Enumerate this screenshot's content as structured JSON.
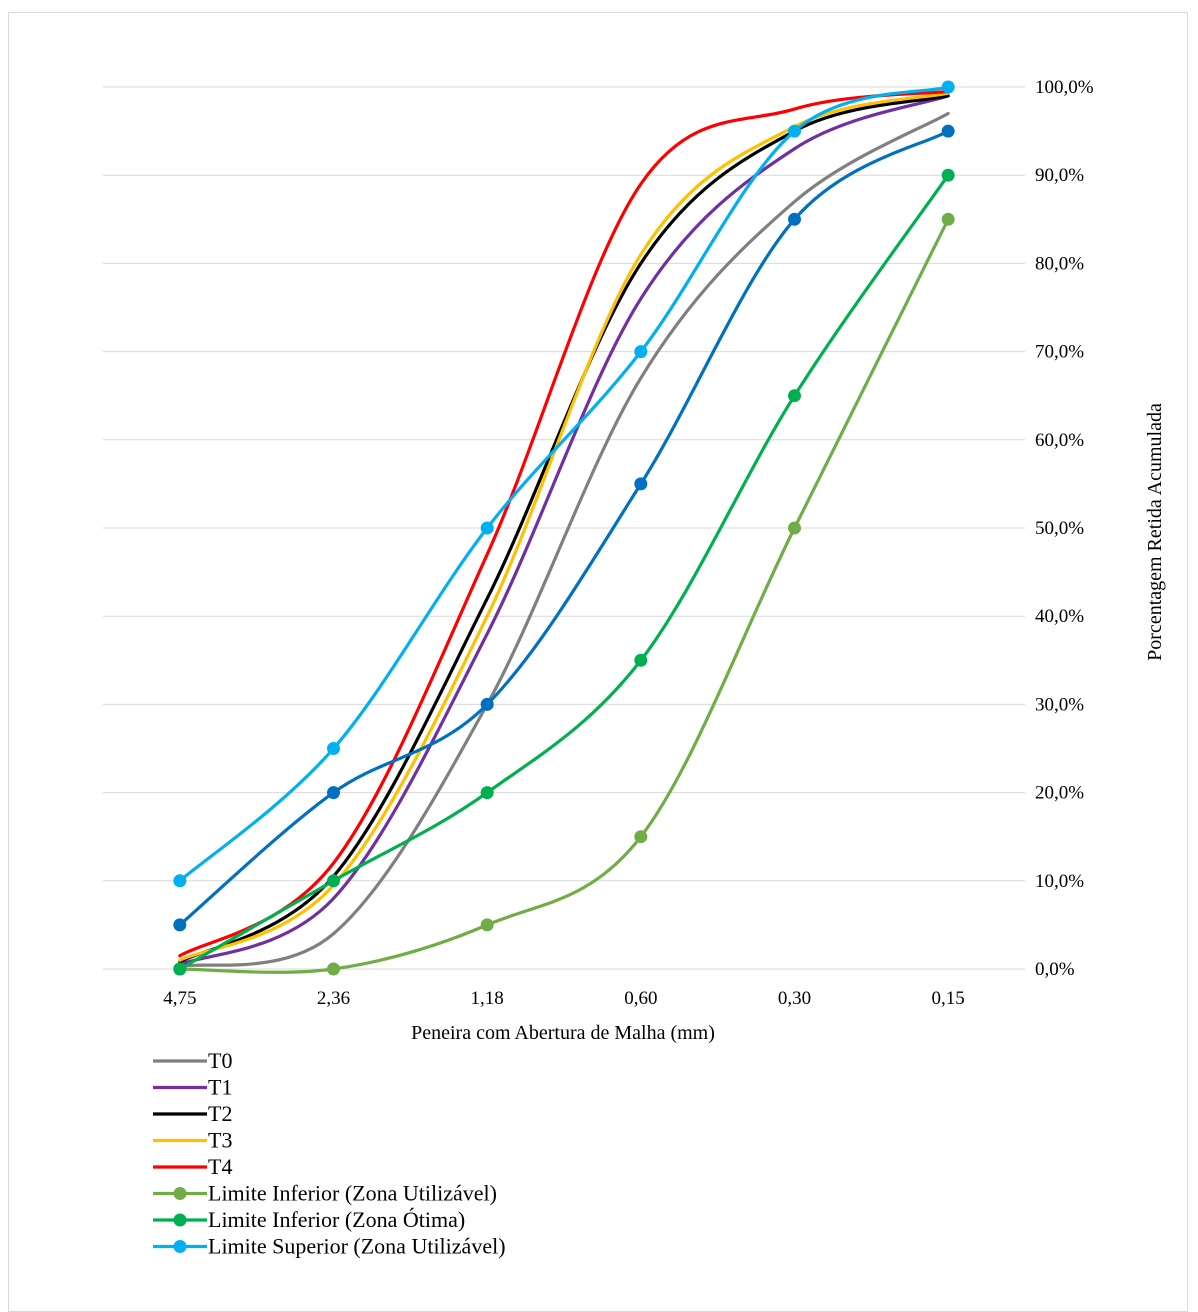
{
  "chart_data": {
    "type": "line",
    "xlabel": "Peneira com Abertura de Malha  (mm)",
    "ylabel": "Porcentagem Retida Acumulada",
    "categories": [
      "4,75",
      "2,36",
      "1,18",
      "0,60",
      "0,30",
      "0,15"
    ],
    "ylim": [
      0,
      100
    ],
    "yticks": [
      "0,0%",
      "10,0%",
      "20,0%",
      "30,0%",
      "40,0%",
      "50,0%",
      "60,0%",
      "70,0%",
      "80,0%",
      "90,0%",
      "100,0%"
    ],
    "y_axis_position": "right",
    "grid": true,
    "legend_position": "bottom-left",
    "smooth": true,
    "series": [
      {
        "name": "T0",
        "color": "#808080",
        "markers": false,
        "values": [
          0.3,
          4,
          30,
          67,
          87,
          97
        ]
      },
      {
        "name": "T1",
        "color": "#7030a0",
        "markers": false,
        "values": [
          0.5,
          8,
          38,
          76,
          93,
          99
        ]
      },
      {
        "name": "T2",
        "color": "#000000",
        "markers": false,
        "values": [
          0.8,
          10.5,
          42,
          80,
          95,
          99
        ]
      },
      {
        "name": "T3",
        "color": "#ffc000",
        "markers": false,
        "values": [
          1,
          9.5,
          40,
          81,
          95.5,
          99.3
        ]
      },
      {
        "name": "T4",
        "color": "#ff0000",
        "markers": false,
        "values": [
          1.5,
          12,
          47,
          89,
          97.5,
          99.5
        ]
      },
      {
        "name": "Limite Inferior (Zona Utilizável)",
        "color": "#70ad47",
        "markers": true,
        "values": [
          0,
          0,
          5,
          15,
          50,
          85
        ]
      },
      {
        "name": "Limite Inferior (Zona Ótima)",
        "color": "#00b050",
        "markers": true,
        "values": [
          0,
          10,
          20,
          35,
          65,
          90
        ]
      },
      {
        "name": "Limite Superior (Zona Utilizável)",
        "color": "#00b0f0",
        "markers": true,
        "values": [
          10,
          25,
          50,
          70,
          95,
          100
        ]
      },
      {
        "name": "",
        "color": "#0070c0",
        "markers": true,
        "values": [
          5,
          20,
          30,
          55,
          85,
          95
        ]
      }
    ]
  }
}
